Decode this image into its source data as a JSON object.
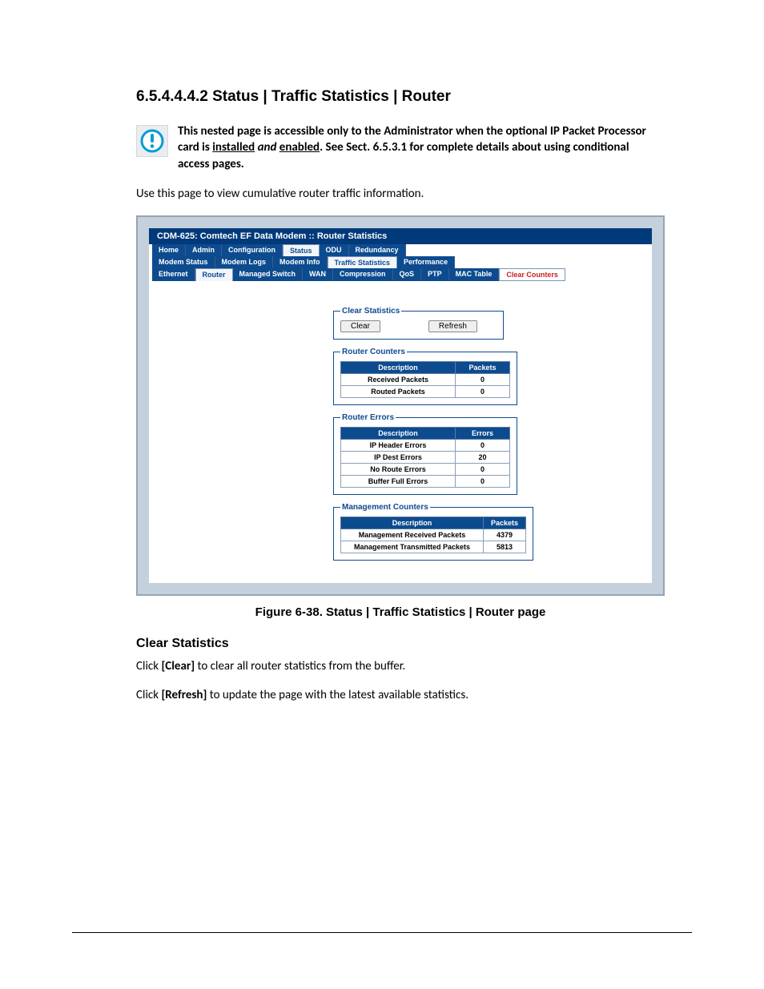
{
  "heading": "6.5.4.4.4.2   Status | Traffic Statistics | Router",
  "info": {
    "part1": "This nested page is accessible only to the Administrator when the optional IP Packet Processor card is ",
    "u1": "installed",
    "and": " and ",
    "u2": "enabled",
    "part2": ". See Sect. 6.5.3.1 for complete details about using conditional access pages."
  },
  "intro": "Use this page to view cumulative router traffic information.",
  "icon": {
    "stroke": "#0a9bd6",
    "fill": "#ffffff",
    "bg": "#e9edf0"
  },
  "screenshot": {
    "frame_bg": "#c4d1dc",
    "title": "CDM-625: Comtech EF Data Modem :: Router Statistics",
    "tabs_row1": [
      {
        "label": "Home",
        "style": "blue"
      },
      {
        "label": "Admin",
        "style": "blue"
      },
      {
        "label": "Configuration",
        "style": "blue"
      },
      {
        "label": "Status",
        "style": "white"
      },
      {
        "label": "ODU",
        "style": "blue"
      },
      {
        "label": "Redundancy",
        "style": "blue"
      }
    ],
    "tabs_row2": [
      {
        "label": "Modem Status",
        "style": "blue"
      },
      {
        "label": "Modem Logs",
        "style": "blue"
      },
      {
        "label": "Modem Info",
        "style": "blue"
      },
      {
        "label": "Traffic Statistics",
        "style": "white"
      },
      {
        "label": "Performance",
        "style": "blue"
      }
    ],
    "tabs_row3": [
      {
        "label": "Ethernet",
        "style": "blue"
      },
      {
        "label": "Router",
        "style": "white"
      },
      {
        "label": "Managed Switch",
        "style": "blue"
      },
      {
        "label": "WAN",
        "style": "blue"
      },
      {
        "label": "Compression",
        "style": "blue"
      },
      {
        "label": "QoS",
        "style": "blue"
      },
      {
        "label": "PTP",
        "style": "blue"
      },
      {
        "label": "MAC Table",
        "style": "blue"
      },
      {
        "label": "Clear Counters",
        "style": "clear"
      }
    ],
    "clear_stats": {
      "legend": "Clear Statistics",
      "btn_clear": "Clear",
      "btn_refresh": "Refresh"
    },
    "router_counters": {
      "legend": "Router Counters",
      "head_desc": "Description",
      "head_val": "Packets",
      "rows": [
        {
          "desc": "Received Packets",
          "val": "0"
        },
        {
          "desc": "Routed Packets",
          "val": "0"
        }
      ],
      "col1_w": 130,
      "col2_w": 55
    },
    "router_errors": {
      "legend": "Router Errors",
      "head_desc": "Description",
      "head_val": "Errors",
      "rows": [
        {
          "desc": "IP Header Errors",
          "val": "0"
        },
        {
          "desc": "IP Dest Errors",
          "val": "20"
        },
        {
          "desc": "No Route Errors",
          "val": "0"
        },
        {
          "desc": "Buffer Full Errors",
          "val": "0"
        }
      ],
      "col1_w": 130,
      "col2_w": 55
    },
    "mgmt_counters": {
      "legend": "Management Counters",
      "head_desc": "Description",
      "head_val": "Packets",
      "rows": [
        {
          "desc": "Management Received Packets",
          "val": "4379"
        },
        {
          "desc": "Management Transmitted Packets",
          "val": "5813"
        }
      ],
      "col1_w": 165,
      "col2_w": 40
    }
  },
  "figcap": "Figure 6-38. Status | Traffic Statistics | Router page",
  "subhead": "Clear Statistics",
  "p1a": "Click ",
  "p1b": "[Clear]",
  "p1c": " to clear all router statistics from the buffer.",
  "p2a": "Click ",
  "p2b": "[Refresh]",
  "p2c": " to update the page with the latest available statistics."
}
